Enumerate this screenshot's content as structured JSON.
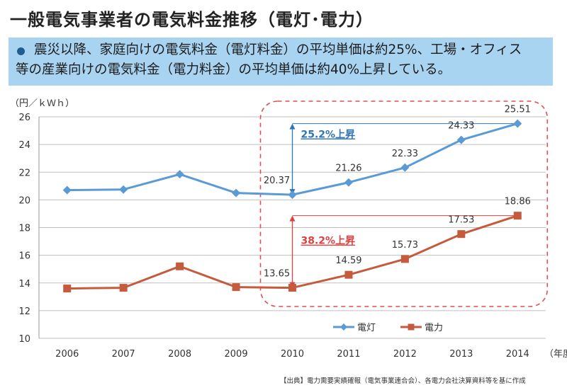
{
  "title": "一般電気事業者の電気料金推移（電灯･電力）",
  "summary": {
    "line1": "震災以降、家庭向けの電気料金（電灯料金）の平均単価は約25%、工場・オフィス",
    "line2": "等の産業向けの電気料金（電力料金）の平均単価は約40%上昇している。"
  },
  "footnote": "【出典】電力需要実績確報（電気事業連合会）、各電力会社決算資料等を基に作成",
  "chart_data": {
    "type": "line",
    "ylabel": "（円／ｋＷｈ）",
    "xlabel": "（年度）",
    "categories": [
      "2006",
      "2007",
      "2008",
      "2009",
      "2010",
      "2011",
      "2012",
      "2013",
      "2014"
    ],
    "ylim": [
      10,
      26
    ],
    "yticks": [
      10,
      12,
      14,
      16,
      18,
      20,
      22,
      24,
      26
    ],
    "grid": true,
    "legend_position": "bottom-center",
    "series": [
      {
        "name": "電灯",
        "color": "#5b9bd5",
        "values": [
          20.7,
          20.75,
          21.85,
          20.5,
          20.37,
          21.26,
          22.33,
          24.33,
          25.51
        ],
        "labels": [
          null,
          null,
          null,
          null,
          "20.37",
          "21.26",
          "22.33",
          "24.33",
          "25.51"
        ]
      },
      {
        "name": "電力",
        "color": "#c55a3c",
        "values": [
          13.6,
          13.65,
          15.2,
          13.7,
          13.65,
          14.59,
          15.73,
          17.53,
          18.86
        ],
        "labels": [
          null,
          null,
          null,
          null,
          "13.65",
          "14.59",
          "15.73",
          "17.53",
          "18.86"
        ]
      }
    ],
    "annotations": [
      {
        "text": "25.2%上昇",
        "color": "#2e75b6",
        "from": 20.37,
        "to": 25.51
      },
      {
        "text": "38.2%上昇",
        "color": "#e0403f",
        "from": 13.65,
        "to": 18.86
      }
    ],
    "highlight_color": "#e05050"
  }
}
